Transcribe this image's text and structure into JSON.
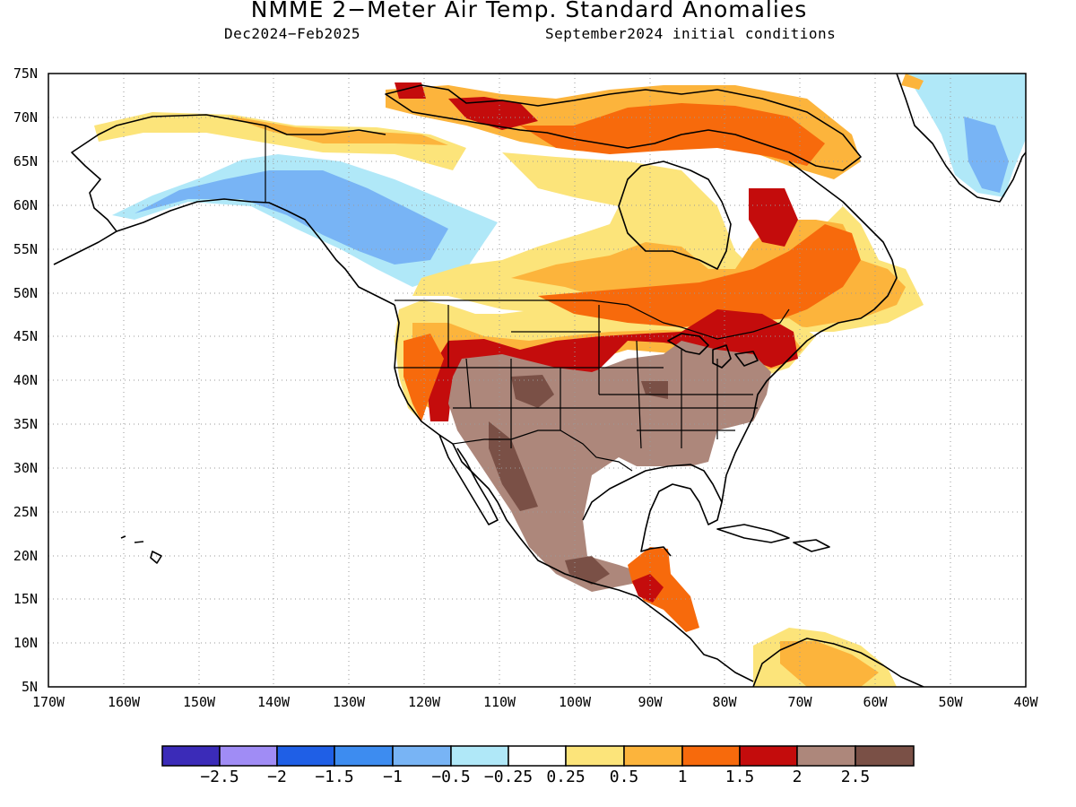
{
  "title": "NMME 2−Meter Air Temp. Standard Anomalies",
  "subtitle_left": "Dec2024−Feb2025",
  "subtitle_right": "September2024 initial conditions",
  "map": {
    "lon_range": [
      -170,
      -40
    ],
    "lat_range": [
      5,
      75
    ],
    "lat_labels": [
      "75N",
      "70N",
      "65N",
      "60N",
      "55N",
      "50N",
      "45N",
      "40N",
      "35N",
      "30N",
      "25N",
      "20N",
      "15N",
      "10N",
      "5N"
    ],
    "lon_labels": [
      "170W",
      "160W",
      "150W",
      "140W",
      "130W",
      "120W",
      "110W",
      "100W",
      "90W",
      "80W",
      "70W",
      "60W",
      "50W",
      "40W"
    ],
    "grid": "dotted"
  },
  "colorbar": {
    "labels": [
      "−2.5",
      "−2",
      "−1.5",
      "−1",
      "−0.5",
      "−0.25",
      "0.25",
      "0.5",
      "1",
      "1.5",
      "2",
      "2.5"
    ],
    "colors": [
      "#3b2bb8",
      "#a08cf5",
      "#1f5fe6",
      "#3d8cf0",
      "#78b4f5",
      "#b0e8f8",
      "#ffffff",
      "#fce47a",
      "#fcb43c",
      "#f76a0c",
      "#c40c0c",
      "#ad877b",
      "#7a5046"
    ]
  }
}
